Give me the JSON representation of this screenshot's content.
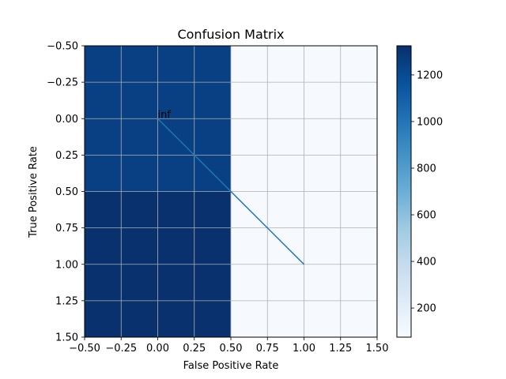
{
  "chart_data": {
    "type": "heatmap",
    "title": "Confusion Matrix",
    "xlabel": "False Positive Rate",
    "ylabel": "True Positive Rate",
    "xlim": [
      -0.5,
      1.5
    ],
    "ylim": [
      1.5,
      -0.5
    ],
    "y_inverted": true,
    "grid": true,
    "x_ticks": [
      "−0.50",
      "−0.25",
      "0.00",
      "0.25",
      "0.50",
      "0.75",
      "1.00",
      "1.25",
      "1.50"
    ],
    "y_ticks": [
      "−0.50",
      "−0.25",
      "0.00",
      "0.25",
      "0.50",
      "0.75",
      "1.00",
      "1.25",
      "1.50"
    ],
    "x_tick_values": [
      -0.5,
      -0.25,
      0,
      0.25,
      0.5,
      0.75,
      1.0,
      1.25,
      1.5
    ],
    "y_tick_values": [
      -0.5,
      -0.25,
      0,
      0.25,
      0.5,
      0.75,
      1.0,
      1.25,
      1.5
    ],
    "matrix": [
      [
        1250,
        80
      ],
      [
        1320,
        80
      ]
    ],
    "colormap": "Blues",
    "colorbar": {
      "min": 75,
      "max": 1325,
      "ticks": [
        "200",
        "400",
        "600",
        "800",
        "1000",
        "1200"
      ],
      "tick_values": [
        200,
        400,
        600,
        800,
        1000,
        1200
      ]
    },
    "line": {
      "x": [
        0.0,
        0.25,
        0.5,
        0.75,
        1.0
      ],
      "y": [
        0.0,
        0.25,
        0.5,
        0.75,
        1.0
      ],
      "color": "#1f77b4"
    },
    "annotation": {
      "text": "inf",
      "x": 0.0,
      "y": 0.0
    }
  }
}
